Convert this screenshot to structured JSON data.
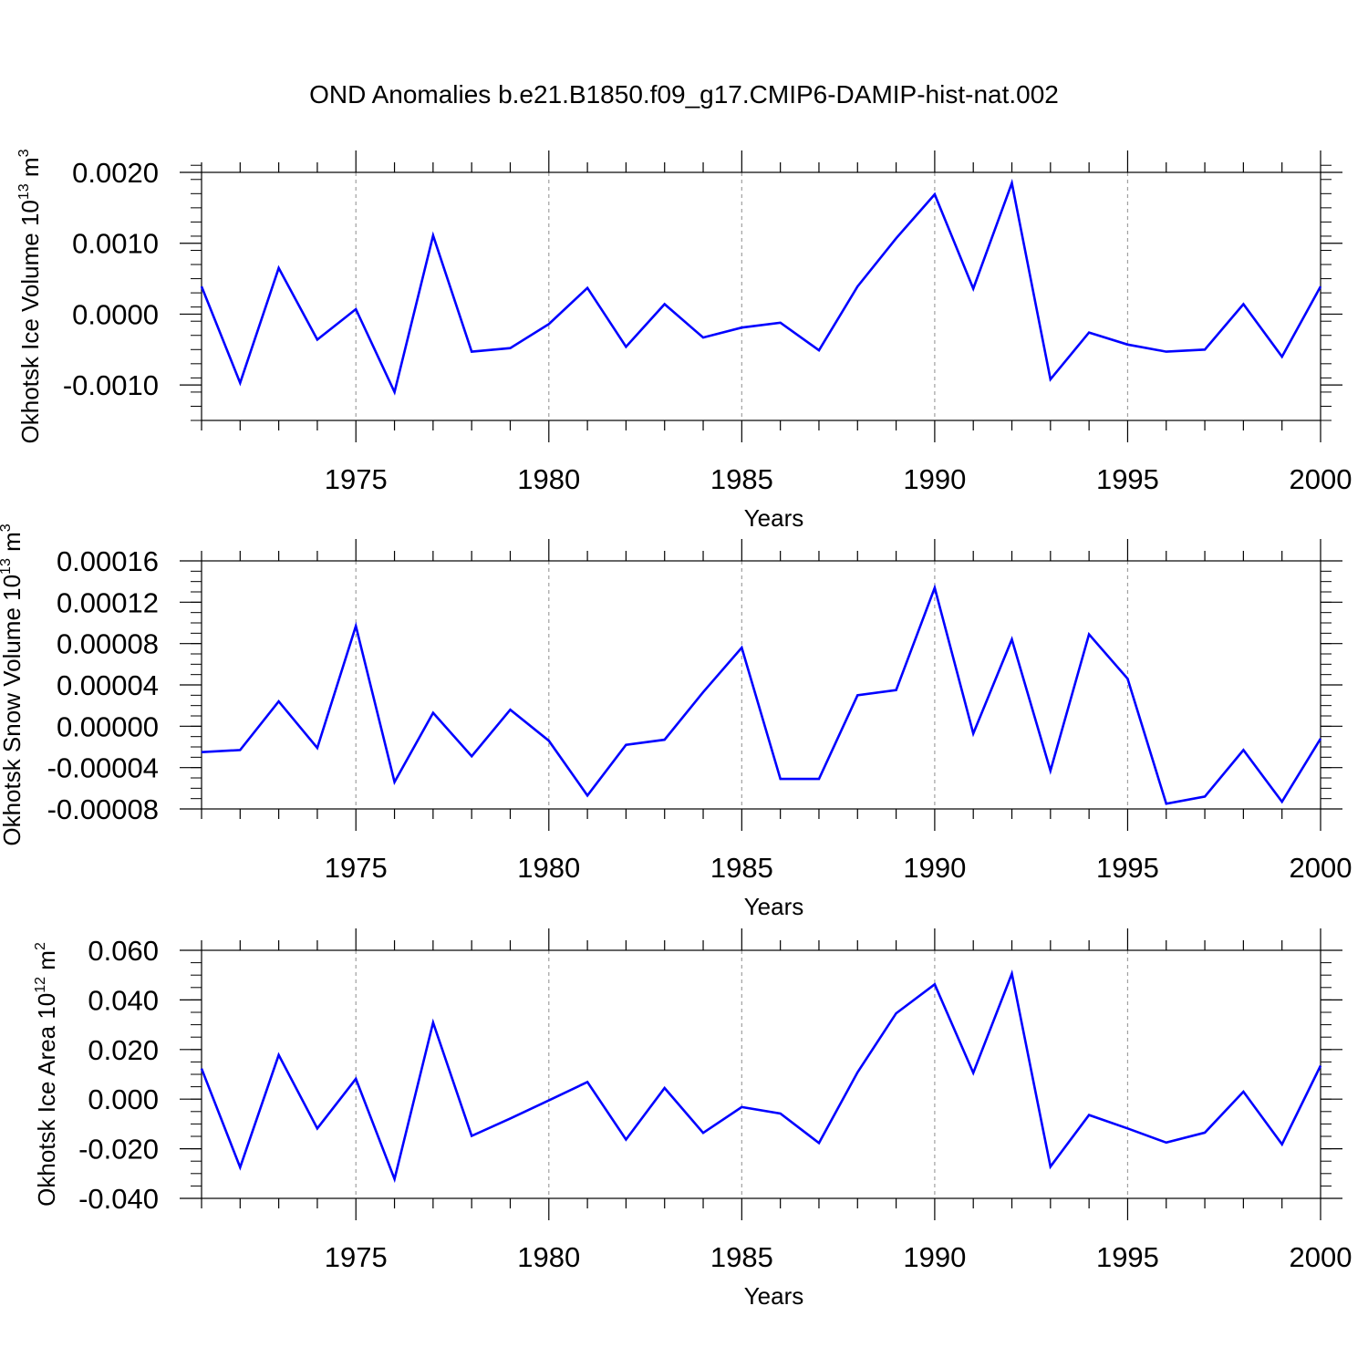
{
  "title": "OND Anomalies b.e21.B1850.f09_g17.CMIP6-DAMIP-hist-nat.002",
  "line_color": "#0000ff",
  "chart_data": [
    {
      "type": "line",
      "ylabel_parts": [
        "Okhotsk Ice Volume 10",
        "13",
        " m",
        "3"
      ],
      "xlabel": "Years",
      "xlim": [
        1971,
        2000
      ],
      "ylim": [
        -0.0015,
        0.002
      ],
      "x_ticks": [
        1975,
        1980,
        1985,
        1990,
        1995,
        2000
      ],
      "x_tick_labels": [
        "1975",
        "1980",
        "1985",
        "1990",
        "1995",
        "2000"
      ],
      "y_ticks": [
        -0.001,
        0,
        0.001,
        0.002
      ],
      "y_tick_labels": [
        "-0.0010",
        "0.0000",
        "0.0010",
        "0.0020"
      ],
      "y_minor_step": 0.0002,
      "x": [
        1971,
        1972,
        1973,
        1974,
        1975,
        1976,
        1977,
        1978,
        1979,
        1980,
        1981,
        1982,
        1983,
        1984,
        1985,
        1986,
        1987,
        1988,
        1989,
        1990,
        1991,
        1992,
        1993,
        1994,
        1995,
        1996,
        1997,
        1998,
        1999,
        2000
      ],
      "values": [
        0.00039,
        -0.00097,
        0.00065,
        -0.00036,
        7e-05,
        -0.0011,
        0.00111,
        -0.00053,
        -0.00048,
        -0.00014,
        0.00037,
        -0.00046,
        0.00014,
        -0.00033,
        -0.00019,
        -0.00012,
        -0.00051,
        0.00039,
        0.00107,
        0.00169,
        0.00036,
        0.00185,
        -0.00092,
        -0.00026,
        -0.00043,
        -0.00053,
        -0.0005,
        0.00014,
        -0.0006,
        0.00039
      ]
    },
    {
      "type": "line",
      "ylabel_parts": [
        "Okhotsk Snow Volume 10",
        "13",
        " m",
        "3"
      ],
      "xlabel": "Years",
      "xlim": [
        1971,
        2000
      ],
      "ylim": [
        -8e-05,
        0.00016
      ],
      "x_ticks": [
        1975,
        1980,
        1985,
        1990,
        1995,
        2000
      ],
      "x_tick_labels": [
        "1975",
        "1980",
        "1985",
        "1990",
        "1995",
        "2000"
      ],
      "y_ticks": [
        -8e-05,
        -4e-05,
        0,
        4e-05,
        8e-05,
        0.00012,
        0.00016
      ],
      "y_tick_labels": [
        "-0.00008",
        "-0.00004",
        "0.00000",
        "0.00004",
        "0.00008",
        "0.00012",
        "0.00016"
      ],
      "y_minor_step": 1e-05,
      "x": [
        1971,
        1972,
        1973,
        1974,
        1975,
        1976,
        1977,
        1978,
        1979,
        1980,
        1981,
        1982,
        1983,
        1984,
        1985,
        1986,
        1987,
        1988,
        1989,
        1990,
        1991,
        1992,
        1993,
        1994,
        1995,
        1996,
        1997,
        1998,
        1999,
        2000
      ],
      "values": [
        -2.5e-05,
        -2.3e-05,
        2.4e-05,
        -2.1e-05,
        9.7e-05,
        -5.4e-05,
        1.3e-05,
        -2.9e-05,
        1.6e-05,
        -1.4e-05,
        -6.7e-05,
        -1.8e-05,
        -1.3e-05,
        3.3e-05,
        7.6e-05,
        -5.1e-05,
        -5.1e-05,
        3e-05,
        3.5e-05,
        0.000134,
        -7e-06,
        8.4e-05,
        -4.3e-05,
        8.9e-05,
        4.6e-05,
        -7.5e-05,
        -6.8e-05,
        -2.3e-05,
        -7.3e-05,
        -1.2e-05
      ]
    },
    {
      "type": "line",
      "ylabel_parts": [
        "Okhotsk Ice Area 10",
        "12",
        " m",
        "2"
      ],
      "xlabel": "Years",
      "xlim": [
        1971,
        2000
      ],
      "ylim": [
        -0.04,
        0.06
      ],
      "x_ticks": [
        1975,
        1980,
        1985,
        1990,
        1995,
        2000
      ],
      "x_tick_labels": [
        "1975",
        "1980",
        "1985",
        "1990",
        "1995",
        "2000"
      ],
      "y_ticks": [
        -0.04,
        -0.02,
        0,
        0.02,
        0.04,
        0.06
      ],
      "y_tick_labels": [
        "-0.040",
        "-0.020",
        "0.000",
        "0.020",
        "0.040",
        "0.060"
      ],
      "y_minor_step": 0.005,
      "x": [
        1971,
        1972,
        1973,
        1974,
        1975,
        1976,
        1977,
        1978,
        1979,
        1980,
        1981,
        1982,
        1983,
        1984,
        1985,
        1986,
        1987,
        1988,
        1989,
        1990,
        1991,
        1992,
        1993,
        1994,
        1995,
        1996,
        1997,
        1998,
        1999,
        2000
      ],
      "values": [
        0.0123,
        -0.0275,
        0.0178,
        -0.0118,
        0.0082,
        -0.0322,
        0.0309,
        -0.0148,
        -0.0078,
        -0.0005,
        0.0069,
        -0.0163,
        0.0045,
        -0.0136,
        -0.0032,
        -0.0058,
        -0.0177,
        0.0108,
        0.0346,
        0.0463,
        0.0106,
        0.0506,
        -0.0272,
        -0.0064,
        -0.0118,
        -0.0175,
        -0.0135,
        0.003,
        -0.0182,
        0.0135
      ]
    }
  ]
}
